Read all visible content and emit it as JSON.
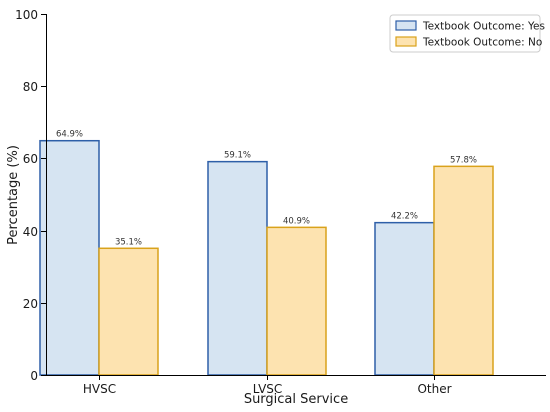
{
  "chart_data": {
    "type": "bar",
    "title": "",
    "xlabel": "Surgical Service",
    "ylabel": "Percentage (%)",
    "ylim": [
      0,
      100
    ],
    "yticks": [
      0,
      20,
      40,
      60,
      80,
      100
    ],
    "categories": [
      "HVSC",
      "LVSC",
      "Other"
    ],
    "series": [
      {
        "name": "Textbook Outcome: Yes",
        "values": [
          64.9,
          59.1,
          42.2
        ],
        "labels": [
          "64.9%",
          "59.1%",
          "42.2%"
        ],
        "fill": "#d6e4f2",
        "stroke": "#2e5fa8"
      },
      {
        "name": "Textbook Outcome: No",
        "values": [
          35.1,
          40.9,
          57.8
        ],
        "labels": [
          "35.1%",
          "40.9%",
          "57.8%"
        ],
        "fill": "#fde3b0",
        "stroke": "#d9a21b"
      }
    ],
    "legend": "top-right",
    "grid": false
  }
}
